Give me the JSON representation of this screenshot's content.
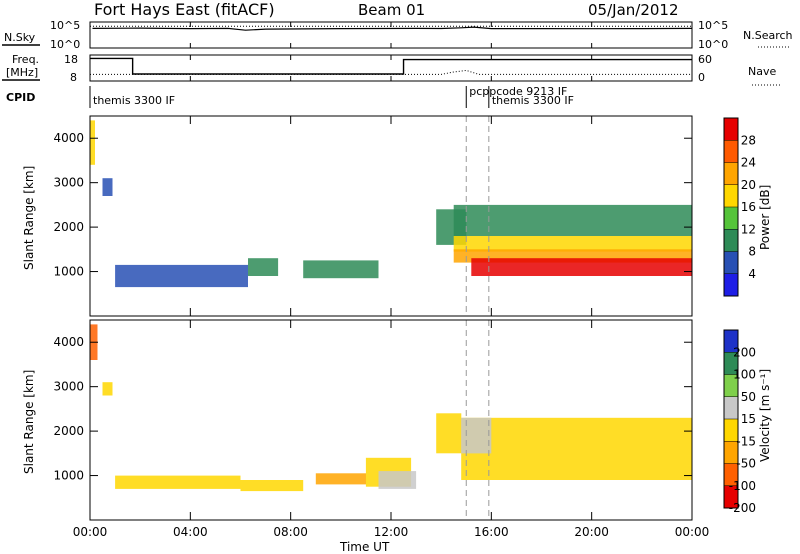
{
  "header": {
    "title": "Fort Hays East (fitACF)",
    "beam": "Beam 01",
    "date": "05/Jan/2012"
  },
  "strips": {
    "nsky_label": "N.Sky",
    "nsky_ticks": [
      "10^5",
      "10^0"
    ],
    "nsearch_label": "N.Search",
    "freq_label_top": "Freq.",
    "freq_label_bottom": "[MHz]",
    "freq_ticks": [
      "18",
      "8"
    ],
    "nave_label": "Nave",
    "nave_ticks": [
      "60",
      "0"
    ],
    "cpid_label": "CPID",
    "cpid_entries": [
      {
        "text": "themis 3300 IF",
        "hour": 0.0
      },
      {
        "text": "pcppcode 9213 IF",
        "hour": 15.0
      },
      {
        "text": "themis 3300 IF",
        "hour": 15.9
      }
    ]
  },
  "axes": {
    "x_label": "Time UT",
    "x_ticks": [
      "00:00",
      "04:00",
      "08:00",
      "12:00",
      "16:00",
      "20:00",
      "00:00"
    ],
    "y_label": "Slant Range [km]",
    "y_ticks": [
      "1000",
      "2000",
      "3000",
      "4000"
    ]
  },
  "colorbars": {
    "power": {
      "label": "Power [dB]",
      "ticks": [
        "4",
        "8",
        "12",
        "16",
        "20",
        "24",
        "28"
      ],
      "colors": [
        "#1e1ee6",
        "#2850b4",
        "#2e8b57",
        "#55c43a",
        "#ffd700",
        "#ffa500",
        "#ff5a00",
        "#e60000"
      ]
    },
    "velocity": {
      "label": "Velocity [m s⁻¹]",
      "ticks": [
        "200",
        "100",
        "50",
        "15",
        "-15",
        "-50",
        "-100",
        "-200"
      ],
      "colors": [
        "#1e32c8",
        "#2e8b57",
        "#7fd04b",
        "#c8c8c8",
        "#ffd700",
        "#ffa500",
        "#ff6000",
        "#e60000"
      ]
    }
  },
  "chart_data": [
    {
      "type": "line",
      "title": "N.Sky / N.Search",
      "x_range_hours": [
        0,
        24
      ],
      "ylim": [
        1,
        100000
      ],
      "y_scale": "log",
      "series": [
        {
          "name": "N.Sky",
          "x": [
            0.1,
            2,
            4,
            5.5,
            6.2,
            7,
            10,
            13,
            14,
            14.8,
            15.3,
            16,
            18,
            20,
            22,
            24
          ],
          "y": [
            10000,
            12000,
            9000,
            10000,
            4000,
            7000,
            9000,
            10000,
            9500,
            14000,
            20000,
            9000,
            9000,
            8500,
            9000,
            10000
          ]
        },
        {
          "name": "N.Search",
          "x": [
            0,
            24
          ],
          "y": [
            30000,
            30000
          ]
        }
      ]
    },
    {
      "type": "line",
      "title": "Freq / Nave",
      "x_range_hours": [
        0,
        24
      ],
      "series": [
        {
          "name": "Freq. [MHz]",
          "x": [
            0,
            1.7,
            1.7,
            12.5,
            12.5,
            24
          ],
          "y": [
            17,
            17,
            10.5,
            10.5,
            16.5,
            16.5
          ]
        },
        {
          "name": "Nave",
          "x": [
            0,
            13.5,
            14,
            14.5,
            15,
            15.5,
            24
          ],
          "y": [
            14,
            14,
            14,
            20,
            24,
            14,
            14
          ]
        }
      ]
    },
    {
      "type": "heatmap",
      "title": "Power [dB]",
      "x_range_hours": [
        0,
        24
      ],
      "ylim": [
        0,
        4500
      ],
      "zlim": [
        0,
        30
      ],
      "regions": [
        {
          "t0": 0.0,
          "t1": 0.2,
          "r0": 3400,
          "r1": 4400,
          "value": 16
        },
        {
          "t0": 0.5,
          "t1": 0.9,
          "r0": 2700,
          "r1": 3100,
          "value": 6
        },
        {
          "t0": 1.0,
          "t1": 6.3,
          "r0": 650,
          "r1": 1150,
          "value": 5
        },
        {
          "t0": 6.3,
          "t1": 7.5,
          "r0": 900,
          "r1": 1300,
          "value": 8
        },
        {
          "t0": 8.5,
          "t1": 11.5,
          "r0": 850,
          "r1": 1250,
          "value": 10
        },
        {
          "t0": 13.8,
          "t1": 15.0,
          "r0": 1600,
          "r1": 2400,
          "value": 8
        },
        {
          "t0": 14.5,
          "t1": 24.0,
          "r0": 1800,
          "r1": 2500,
          "value": 8
        },
        {
          "t0": 14.5,
          "t1": 24.0,
          "r0": 1450,
          "r1": 1800,
          "value": 16
        },
        {
          "t0": 14.5,
          "t1": 24.0,
          "r0": 1200,
          "r1": 1500,
          "value": 22
        },
        {
          "t0": 15.2,
          "t1": 24.0,
          "r0": 900,
          "r1": 1300,
          "value": 28
        }
      ]
    },
    {
      "type": "heatmap",
      "title": "Velocity [m s⁻¹]",
      "x_range_hours": [
        0,
        24
      ],
      "ylim": [
        0,
        4500
      ],
      "zlim": [
        -200,
        200
      ],
      "regions": [
        {
          "t0": 0.0,
          "t1": 0.3,
          "r0": 3600,
          "r1": 4400,
          "value": -100
        },
        {
          "t0": 0.5,
          "t1": 0.9,
          "r0": 2800,
          "r1": 3100,
          "value": 0
        },
        {
          "t0": 1.0,
          "t1": 6.0,
          "r0": 700,
          "r1": 1000,
          "value": -40
        },
        {
          "t0": 6.0,
          "t1": 8.5,
          "r0": 650,
          "r1": 900,
          "value": 0
        },
        {
          "t0": 9.0,
          "t1": 11.0,
          "r0": 800,
          "r1": 1050,
          "value": -70
        },
        {
          "t0": 11.0,
          "t1": 12.8,
          "r0": 750,
          "r1": 1400,
          "value": 0
        },
        {
          "t0": 11.5,
          "t1": 13.0,
          "r0": 700,
          "r1": 1100,
          "value": 40
        },
        {
          "t0": 13.8,
          "t1": 14.8,
          "r0": 1500,
          "r1": 2400,
          "value": -40
        },
        {
          "t0": 14.8,
          "t1": 24.0,
          "r0": 900,
          "r1": 2300,
          "value": 0
        },
        {
          "t0": 14.8,
          "t1": 16.0,
          "r0": 1500,
          "r1": 2300,
          "value": 40
        }
      ]
    }
  ]
}
